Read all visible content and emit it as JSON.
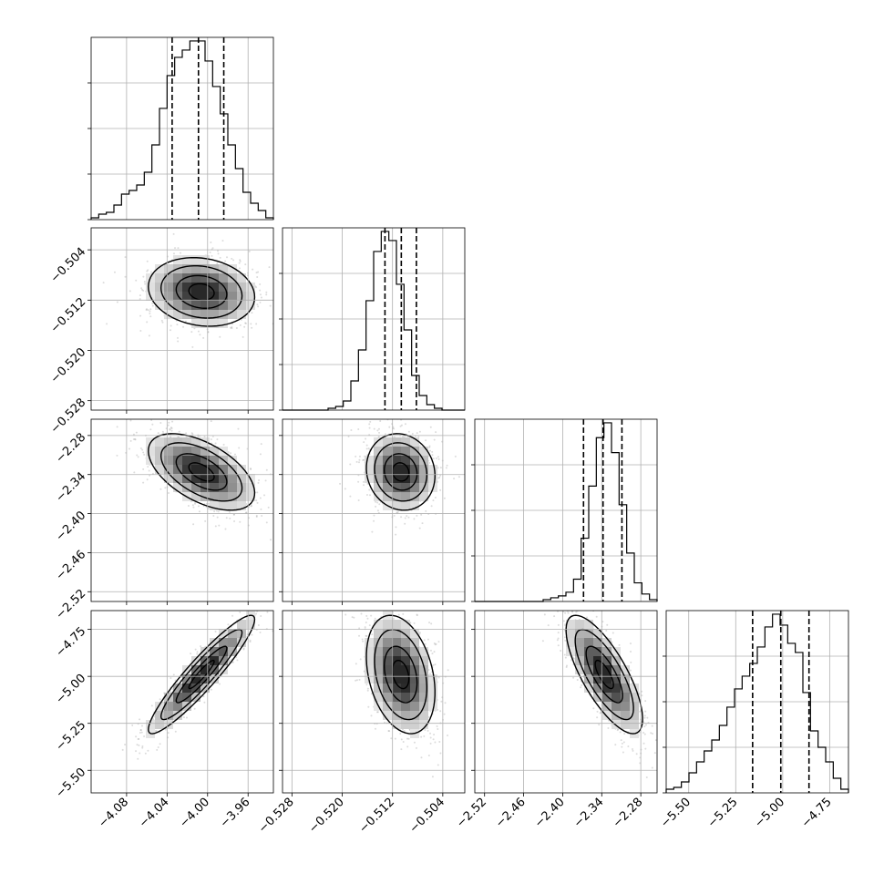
{
  "chart_data": {
    "type": "corner",
    "grid": true,
    "parameters": [
      {
        "range": [
          -4.115,
          -3.935
        ],
        "ticks": [
          -4.08,
          -4.04,
          -4.0,
          -3.96
        ],
        "tick_labels": [
          "−4.08",
          "−4.04",
          "−4.00",
          "−3.96"
        ],
        "median": -4.009,
        "q16": -4.035,
        "q84": -3.984,
        "mean": -4.006,
        "sd": 0.025
      },
      {
        "range": [
          -0.5295,
          -0.5005
        ],
        "ticks": [
          -0.528,
          -0.52,
          -0.512,
          -0.504
        ],
        "tick_labels": [
          "−0.528",
          "−0.520",
          "−0.512",
          "−0.504"
        ],
        "median": -0.5106,
        "q16": -0.5132,
        "q84": -0.5082,
        "mean": -0.5107,
        "sd": 0.0026
      },
      {
        "range": [
          -2.535,
          -2.255
        ],
        "ticks": [
          -2.52,
          -2.46,
          -2.4,
          -2.34,
          -2.28
        ],
        "tick_labels": [
          "−2.52",
          "−2.46",
          "−2.40",
          "−2.34",
          "−2.28"
        ],
        "median": -2.338,
        "q16": -2.368,
        "q84": -2.309,
        "mean": -2.336,
        "sd": 0.028
      },
      {
        "range": [
          -5.62,
          -4.65
        ],
        "ticks": [
          -5.5,
          -5.25,
          -5.0,
          -4.75
        ],
        "tick_labels": [
          "−5.50",
          "−5.25",
          "−5.00",
          "−4.75"
        ],
        "median": -5.01,
        "q16": -5.16,
        "q84": -4.86,
        "mean": -4.99,
        "sd": 0.15
      }
    ],
    "histograms": [
      {
        "counts": [
          1,
          3,
          4,
          8,
          14,
          16,
          19,
          26,
          41,
          61,
          79,
          89,
          93,
          98,
          98,
          87,
          73,
          58,
          41,
          28,
          15,
          9,
          5,
          1
        ]
      },
      {
        "counts": [
          0,
          0,
          0,
          0,
          0,
          0,
          1,
          2,
          5,
          16,
          33,
          60,
          87,
          98,
          93,
          69,
          44,
          19,
          8,
          3,
          1,
          0,
          0,
          0
        ]
      },
      {
        "counts": [
          0,
          0,
          0,
          0,
          0,
          0,
          0,
          0,
          0,
          1,
          2,
          3,
          5,
          12,
          34,
          62,
          88,
          96,
          80,
          52,
          26,
          10,
          4,
          1
        ]
      },
      {
        "counts": [
          2,
          3,
          6,
          11,
          17,
          23,
          29,
          37,
          47,
          57,
          64,
          71,
          80,
          91,
          98,
          92,
          82,
          77,
          55,
          34,
          25,
          17,
          8,
          2
        ]
      }
    ],
    "pairs": [
      {
        "x": 0,
        "y": 1,
        "rho": -0.15,
        "peak": [
          -4.01,
          -0.5105
        ]
      },
      {
        "x": 0,
        "y": 2,
        "rho": -0.55,
        "peak": [
          -4.005,
          -2.34
        ]
      },
      {
        "x": 1,
        "y": 2,
        "rho": -0.1,
        "peak": [
          -0.5107,
          -2.337
        ]
      },
      {
        "x": 0,
        "y": 3,
        "rho": 0.93,
        "peak": [
          -4.01,
          -5.02
        ]
      },
      {
        "x": 1,
        "y": 3,
        "rho": -0.3,
        "peak": [
          -0.5107,
          -5.0
        ]
      },
      {
        "x": 2,
        "y": 3,
        "rho": -0.75,
        "peak": [
          -2.34,
          -5.0
        ]
      }
    ],
    "contour_levels": [
      0.11,
      0.39,
      0.68
    ]
  }
}
